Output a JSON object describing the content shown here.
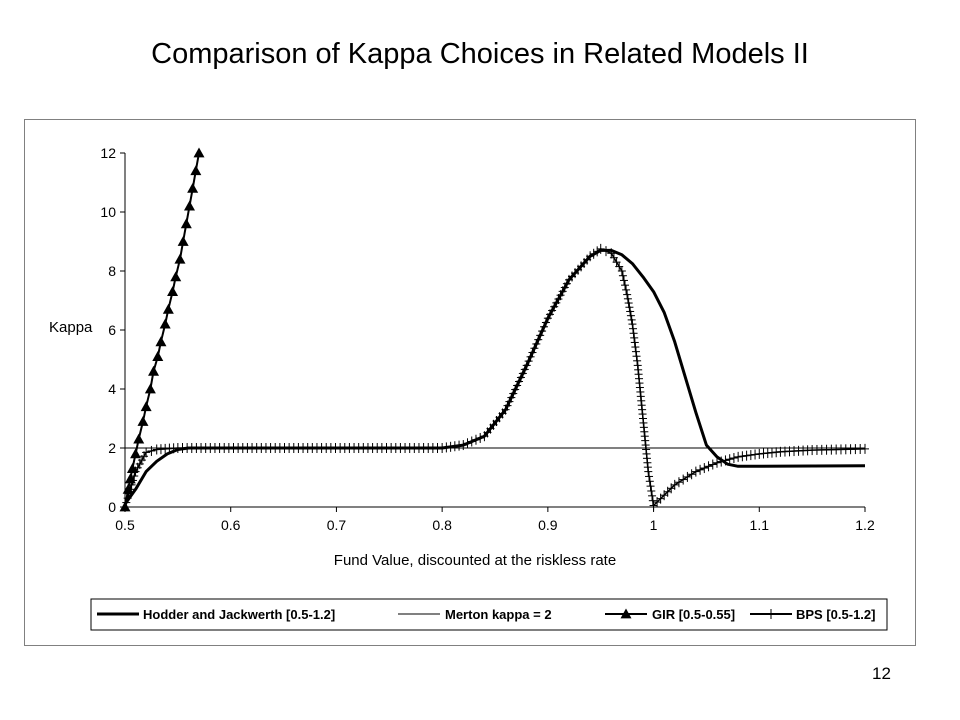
{
  "slide": {
    "title": "Comparison of Kappa Choices in Related Models II",
    "page_number": "12"
  },
  "chart_data": {
    "type": "line",
    "title": "",
    "xlabel": "Fund Value, discounted at the riskless rate",
    "ylabel": "Kappa",
    "xlim": [
      0.5,
      1.2
    ],
    "ylim": [
      0,
      12
    ],
    "xticks": [
      "0.5",
      "0.6",
      "0.7",
      "0.8",
      "0.9",
      "1",
      "1.1",
      "1.2"
    ],
    "yticks": [
      "0",
      "2",
      "4",
      "6",
      "8",
      "10",
      "12"
    ],
    "grid": false,
    "legend_position": "bottom",
    "series": [
      {
        "name": "Hodder and Jackwerth [0.5-1.2]",
        "style": "thick-line",
        "color": "#000000",
        "points": [
          [
            0.5,
            0.1
          ],
          [
            0.51,
            0.6
          ],
          [
            0.52,
            1.2
          ],
          [
            0.53,
            1.55
          ],
          [
            0.54,
            1.8
          ],
          [
            0.55,
            1.95
          ],
          [
            0.56,
            2.0
          ],
          [
            0.6,
            2.0
          ],
          [
            0.7,
            2.0
          ],
          [
            0.8,
            2.0
          ],
          [
            0.82,
            2.1
          ],
          [
            0.84,
            2.4
          ],
          [
            0.86,
            3.3
          ],
          [
            0.88,
            4.8
          ],
          [
            0.9,
            6.4
          ],
          [
            0.92,
            7.7
          ],
          [
            0.94,
            8.5
          ],
          [
            0.95,
            8.7
          ],
          [
            0.96,
            8.7
          ],
          [
            0.97,
            8.55
          ],
          [
            0.98,
            8.25
          ],
          [
            0.99,
            7.8
          ],
          [
            1.0,
            7.3
          ],
          [
            1.01,
            6.6
          ],
          [
            1.02,
            5.6
          ],
          [
            1.03,
            4.4
          ],
          [
            1.04,
            3.2
          ],
          [
            1.05,
            2.1
          ],
          [
            1.06,
            1.7
          ],
          [
            1.07,
            1.45
          ],
          [
            1.08,
            1.38
          ],
          [
            1.1,
            1.38
          ],
          [
            1.2,
            1.4
          ]
        ]
      },
      {
        "name": "Merton kappa = 2",
        "style": "thin-line",
        "color": "#000000",
        "points": [
          [
            0.5,
            2.0
          ],
          [
            1.2,
            2.0
          ]
        ]
      },
      {
        "name": "GIR [0.5-0.55]",
        "style": "triangle-markers",
        "color": "#000000",
        "points": [
          [
            0.5,
            0.0
          ],
          [
            0.503,
            0.6
          ],
          [
            0.507,
            1.3
          ],
          [
            0.51,
            1.8
          ],
          [
            0.513,
            2.3
          ],
          [
            0.517,
            2.9
          ],
          [
            0.52,
            3.4
          ],
          [
            0.524,
            4.0
          ],
          [
            0.527,
            4.6
          ],
          [
            0.531,
            5.1
          ],
          [
            0.534,
            5.6
          ],
          [
            0.538,
            6.2
          ],
          [
            0.541,
            6.7
          ],
          [
            0.545,
            7.3
          ],
          [
            0.548,
            7.8
          ],
          [
            0.552,
            8.4
          ],
          [
            0.555,
            9.0
          ],
          [
            0.558,
            9.6
          ],
          [
            0.561,
            10.2
          ],
          [
            0.564,
            10.8
          ],
          [
            0.567,
            11.4
          ],
          [
            0.57,
            12.0
          ]
        ]
      },
      {
        "name": "BPS [0.5-1.2]",
        "style": "plus-markers",
        "color": "#000000",
        "points": [
          [
            0.5,
            0.0
          ],
          [
            0.51,
            1.2
          ],
          [
            0.52,
            1.85
          ],
          [
            0.53,
            1.95
          ],
          [
            0.55,
            2.0
          ],
          [
            0.8,
            2.0
          ],
          [
            0.82,
            2.1
          ],
          [
            0.84,
            2.4
          ],
          [
            0.86,
            3.3
          ],
          [
            0.88,
            4.8
          ],
          [
            0.9,
            6.4
          ],
          [
            0.92,
            7.7
          ],
          [
            0.94,
            8.5
          ],
          [
            0.95,
            8.75
          ],
          [
            0.96,
            8.6
          ],
          [
            0.97,
            8.0
          ],
          [
            0.975,
            7.2
          ],
          [
            0.98,
            6.2
          ],
          [
            0.985,
            4.8
          ],
          [
            0.99,
            3.0
          ],
          [
            0.995,
            1.2
          ],
          [
            1.0,
            0.05
          ],
          [
            1.01,
            0.4
          ],
          [
            1.02,
            0.75
          ],
          [
            1.04,
            1.2
          ],
          [
            1.06,
            1.5
          ],
          [
            1.08,
            1.7
          ],
          [
            1.1,
            1.8
          ],
          [
            1.12,
            1.87
          ],
          [
            1.15,
            1.93
          ],
          [
            1.2,
            1.97
          ]
        ]
      }
    ]
  }
}
